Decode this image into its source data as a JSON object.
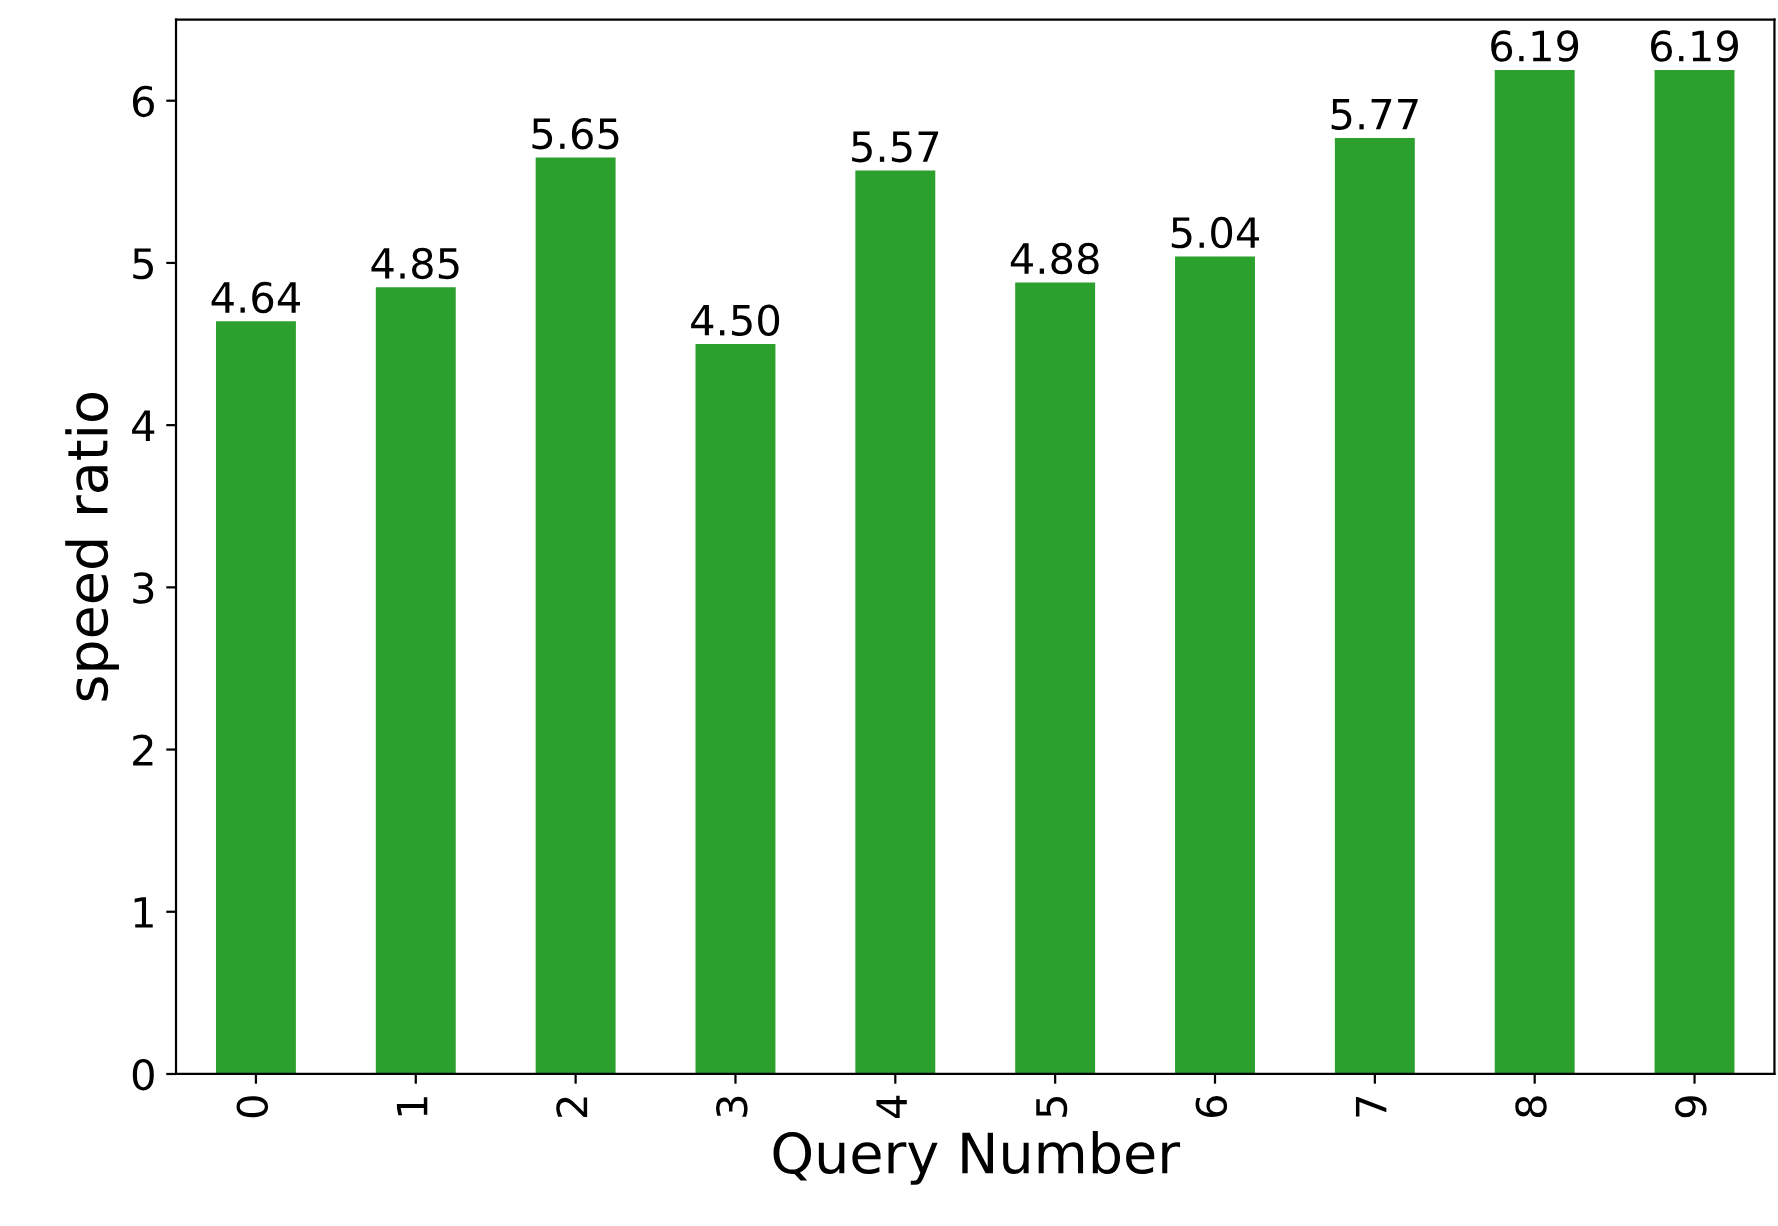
{
  "chart_data": {
    "type": "bar",
    "xlabel": "Query Number",
    "ylabel": "speed ratio",
    "categories": [
      "0",
      "1",
      "2",
      "3",
      "4",
      "5",
      "6",
      "7",
      "8",
      "9"
    ],
    "values": [
      4.64,
      4.85,
      5.65,
      4.5,
      5.57,
      4.88,
      5.04,
      5.77,
      6.19,
      6.19
    ],
    "value_labels": [
      "4.64",
      "4.85",
      "5.65",
      "4.50",
      "5.57",
      "4.88",
      "5.04",
      "5.77",
      "6.19",
      "6.19"
    ],
    "color": "#2ca02c",
    "ylim": [
      0,
      6.5
    ],
    "yticks": [
      0,
      1,
      2,
      3,
      4,
      5,
      6
    ],
    "grid": false,
    "legend": false
  }
}
